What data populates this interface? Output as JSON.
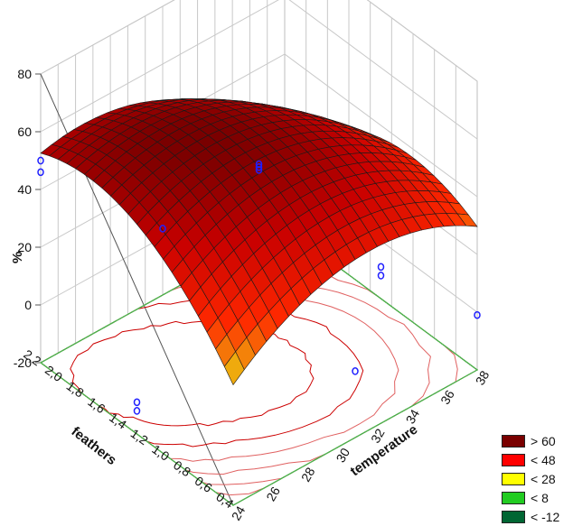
{
  "chart_data": {
    "type": "surface",
    "zlabel": "%",
    "xlabel": "temperature",
    "ylabel": "feathers",
    "zlim": [
      -20,
      80
    ],
    "xlim": [
      24,
      38
    ],
    "ylim": [
      0.4,
      2.2
    ],
    "z_ticks": [
      "80",
      "60",
      "40",
      "20",
      "0",
      "-20"
    ],
    "x_ticks": [
      "24",
      "26",
      "28",
      "30",
      "32",
      "34",
      "36",
      "38"
    ],
    "y_ticks": [
      "2,2",
      "2,0",
      "1,8",
      "1,6",
      "1,4",
      "1,2",
      "1,0",
      "0,8",
      "0,6",
      "0,4"
    ],
    "points": [
      {
        "temperature": 24,
        "feathers": 2.2,
        "value": 50
      },
      {
        "temperature": 24,
        "feathers": 2.2,
        "value": 46
      },
      {
        "temperature": 31,
        "feathers": 1.3,
        "value": 50
      },
      {
        "temperature": 31,
        "feathers": 1.3,
        "value": 49
      },
      {
        "temperature": 31,
        "feathers": 1.3,
        "value": 48
      },
      {
        "temperature": 38,
        "feathers": 0.4,
        "value": -1
      },
      {
        "temperature": 31,
        "feathers": 0.4,
        "value": 3
      },
      {
        "temperature": 31,
        "feathers": 2.2,
        "value": 3
      },
      {
        "temperature": 24,
        "feathers": 1.3,
        "value": -9
      },
      {
        "temperature": 24,
        "feathers": 1.3,
        "value": -12
      },
      {
        "temperature": 38,
        "feathers": 1.3,
        "value": -9
      },
      {
        "temperature": 38,
        "feathers": 1.3,
        "value": -12
      }
    ],
    "legend": [
      {
        "label": "> 60",
        "color": "#7a0000"
      },
      {
        "label": "< 48",
        "color": "#ff0000"
      },
      {
        "label": "< 28",
        "color": "#ffff00"
      },
      {
        "label": "< 8",
        "color": "#22cc22"
      },
      {
        "label": "< -12",
        "color": "#006633"
      }
    ],
    "legend_position": "bottom-right",
    "grid": true
  }
}
